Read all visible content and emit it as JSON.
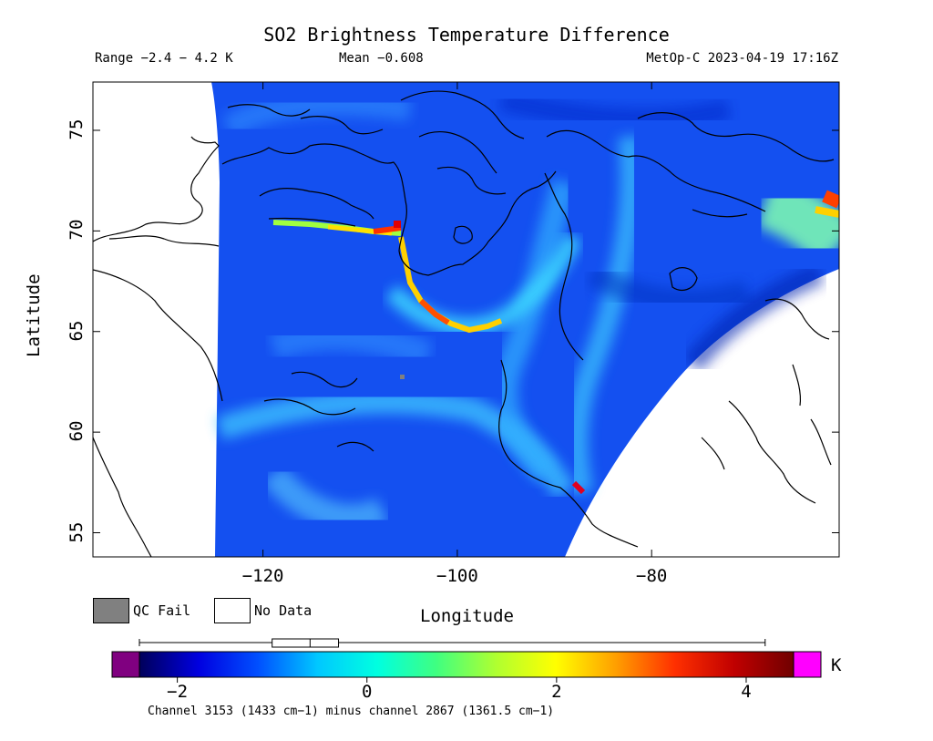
{
  "title": "SO2 Brightness Temperature Difference",
  "range_text": "Range −2.4 − 4.2 K",
  "mean_text": "Mean −0.608",
  "stamp_text": "MetOp-C 2023-04-19 17:16Z",
  "xlabel": "Longitude",
  "ylabel": "Latitude",
  "x_ticks": [
    "−120",
    "−100",
    "−80"
  ],
  "x_tick_values": [
    -120,
    -100,
    -80
  ],
  "y_ticks": [
    "75",
    "70",
    "65",
    "60",
    "55"
  ],
  "y_tick_values": [
    75,
    70,
    65,
    60,
    55
  ],
  "map_extent": {
    "lon": [
      -137.5,
      -60.7
    ],
    "lat": [
      53.8,
      77.4
    ]
  },
  "legend": {
    "qc_fail_label": "QC Fail",
    "qc_fail_color": "#808080",
    "no_data_label": "No Data",
    "no_data_color": "#ffffff"
  },
  "colorbar": {
    "unit": "K",
    "ticks": [
      "−2",
      "0",
      "2",
      "4"
    ],
    "tick_values": [
      -2,
      0,
      2,
      4
    ],
    "min": -2.4,
    "max": 4.5,
    "underflow_color": "#800080",
    "overflow_color": "#ff00ff",
    "stops": [
      "#00005a",
      "#0000e0",
      "#0050ff",
      "#00c8ff",
      "#00ffe0",
      "#40ff80",
      "#b0ff30",
      "#ffff00",
      "#ffa000",
      "#ff3000",
      "#c00000",
      "#700000"
    ],
    "boxplot": {
      "whisker_low": -2.4,
      "q1": -1.0,
      "median": -0.6,
      "q3": -0.3,
      "whisker_high": 4.2
    }
  },
  "footnote": "Channel 3153 (1433 cm−1) minus channel 2867 (1361.5 cm−1)"
}
